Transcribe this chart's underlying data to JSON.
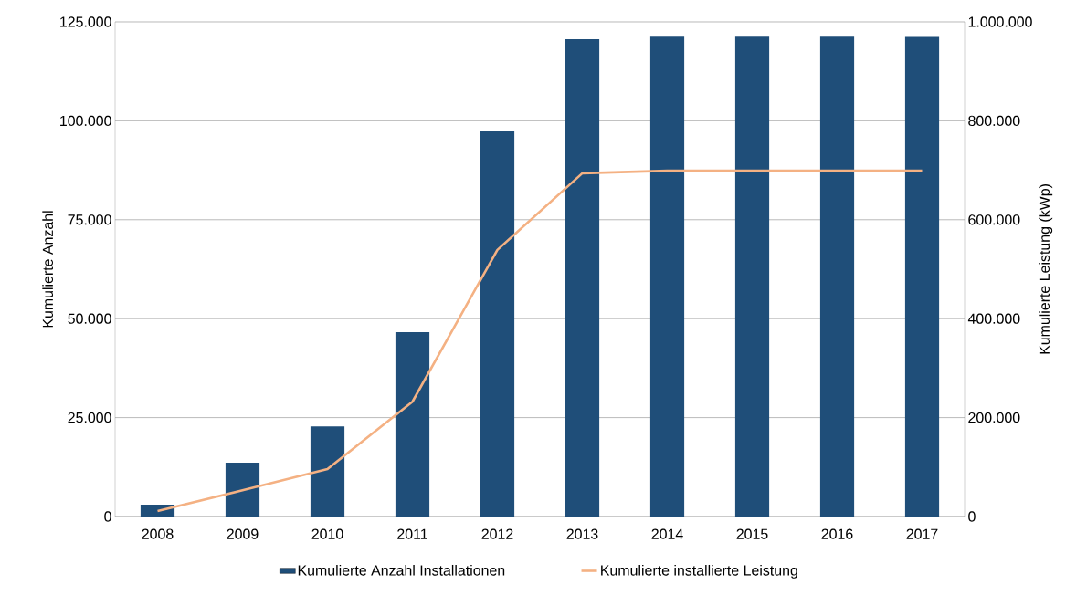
{
  "chart_data": {
    "type": "bar",
    "categories": [
      "2008",
      "2009",
      "2010",
      "2011",
      "2012",
      "2013",
      "2014",
      "2015",
      "2016",
      "2017"
    ],
    "series": [
      {
        "name": "Kumulierte Anzahl Installationen",
        "color": "#1f4e79",
        "values": [
          3000,
          13600,
          22800,
          46600,
          97300,
          120600,
          121500,
          121500,
          121500,
          121400
        ]
      },
      {
        "name": "Kumulierte installierte Leistung",
        "type": "line",
        "axis": "y2",
        "color": "#f4b183",
        "values": [
          11000,
          53000,
          96000,
          232000,
          539000,
          694000,
          699000,
          699000,
          699000,
          699000
        ]
      }
    ],
    "ylabel": "Kumulierte Anzahl",
    "y2label": "Kumulierte  Leistung (kWp)",
    "ylim": [
      0,
      125000
    ],
    "yticks": [
      {
        "value": 0,
        "label": "0"
      },
      {
        "value": 25000,
        "label": "25.000"
      },
      {
        "value": 50000,
        "label": "50.000"
      },
      {
        "value": 75000,
        "label": "75.000"
      },
      {
        "value": 100000,
        "label": "100.000"
      },
      {
        "value": 125000,
        "label": "125.000"
      }
    ],
    "y2lim": [
      0,
      1000000
    ],
    "y2ticks": [
      {
        "value": 0,
        "label": "0"
      },
      {
        "value": 200000,
        "label": "200.000"
      },
      {
        "value": 400000,
        "label": "400.000"
      },
      {
        "value": 600000,
        "label": "600.000"
      },
      {
        "value": 800000,
        "label": "800.000"
      },
      {
        "value": 1000000,
        "label": "1.000.000"
      }
    ],
    "grid": "y",
    "legend": "bottom",
    "marker": "none",
    "line_style": "solid"
  }
}
